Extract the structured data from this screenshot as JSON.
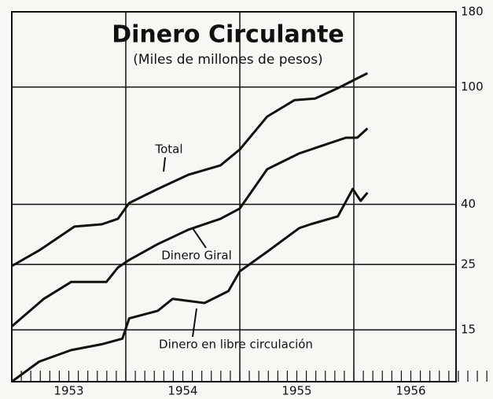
{
  "chart_data": {
    "type": "line",
    "title": "Dinero Circulante",
    "subtitle": "(Miles de millones de pesos)",
    "log_scale": true,
    "grid": true,
    "xlim": [
      1953,
      1957
    ],
    "xticks": [
      {
        "value": 1953.5,
        "label": "1953"
      },
      {
        "value": 1954.5,
        "label": "1954"
      },
      {
        "value": 1955.5,
        "label": "1955"
      },
      {
        "value": 1956.5,
        "label": "1956"
      }
    ],
    "xgrid": [
      1954,
      1955,
      1956
    ],
    "ylim": [
      10,
      180
    ],
    "yticks": [
      15,
      25,
      40,
      100,
      180
    ],
    "series": [
      {
        "name": "Total",
        "color": "#111111",
        "x": [
          1953.0,
          1953.24,
          1953.55,
          1953.79,
          1953.93,
          1954.03,
          1954.28,
          1954.55,
          1954.83,
          1955.0,
          1955.24,
          1955.48,
          1955.66,
          1955.86,
          1956.12
        ],
        "values": [
          24.7,
          27.9,
          33.6,
          34.2,
          35.7,
          40.4,
          45.1,
          50.4,
          54.2,
          61.4,
          79.4,
          90.3,
          91.4,
          99.1,
          111.4
        ]
      },
      {
        "name": "Dinero Giral",
        "color": "#111111",
        "x": [
          1953.0,
          1953.28,
          1953.52,
          1953.83,
          1953.93,
          1954.03,
          1954.28,
          1954.55,
          1954.83,
          1955.0,
          1955.24,
          1955.52,
          1955.72,
          1955.93,
          1956.03,
          1956.12
        ],
        "values": [
          15.4,
          19.1,
          21.8,
          21.8,
          24.4,
          25.9,
          29.3,
          32.8,
          35.7,
          38.7,
          52.6,
          59.5,
          63.2,
          67.3,
          67.3,
          72.4
        ]
      },
      {
        "name": "Dinero en libre circulación",
        "color": "#111111",
        "x": [
          1953.0,
          1953.24,
          1953.52,
          1953.79,
          1953.97,
          1954.03,
          1954.28,
          1954.41,
          1954.69,
          1954.9,
          1955.0,
          1955.24,
          1955.52,
          1955.62,
          1955.86,
          1955.99,
          1956.06,
          1956.12
        ],
        "values": [
          10.0,
          11.7,
          12.8,
          13.4,
          14.0,
          16.4,
          17.4,
          19.1,
          18.5,
          20.3,
          23.7,
          27.6,
          33.2,
          34.2,
          36.4,
          45.1,
          41.1,
          43.8
        ]
      }
    ]
  }
}
